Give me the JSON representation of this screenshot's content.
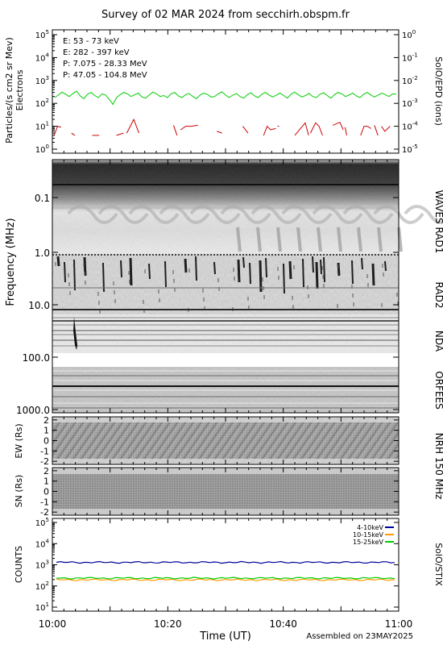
{
  "title": "Survey of 02 MAR 2024 from secchirh.obspm.fr",
  "footer": "Assembled on 23MAY2025",
  "chart_data": [
    {
      "id": "epd",
      "type": "line",
      "ylabel": "Particles/(s cm2 sr Mev)",
      "ylabel2": "Electrons",
      "right_label": "SolO/EPD  (ions)",
      "y_scale": "log",
      "ylim": [
        0.5,
        100000
      ],
      "y_ticks": [
        "10^0",
        "10^1",
        "10^2",
        "10^3",
        "10^4",
        "10^5"
      ],
      "y2_ticks": [
        "10^-5",
        "10^-4",
        "10^-3",
        "10^-2",
        "10^-1",
        "10^0"
      ],
      "legend_position": "top-left",
      "series": [
        {
          "name": "E: 53 - 73 keV",
          "color": "#00cc00",
          "values": [
            180,
            230,
            310,
            250,
            200,
            270,
            340,
            210,
            160,
            250,
            300,
            220,
            180,
            260,
            230,
            150,
            90,
            180,
            240,
            300,
            260,
            200,
            240,
            280,
            190,
            170,
            230,
            310,
            260,
            200,
            220,
            180,
            260,
            300,
            210,
            180,
            240,
            270,
            200,
            160,
            230,
            280,
            250,
            190,
            200,
            260,
            320,
            230,
            180,
            230,
            270,
            200,
            170,
            240,
            290,
            210,
            180,
            250,
            300,
            230,
            190,
            230,
            280,
            220,
            170,
            250,
            310,
            240,
            190,
            220,
            270,
            200,
            180,
            250,
            290,
            220,
            170,
            240,
            300,
            260,
            200,
            230,
            280,
            210,
            180,
            250,
            300,
            230,
            190,
            230,
            280,
            240,
            200,
            260,
            250
          ]
        },
        {
          "name": "E: 282 - 397 keV",
          "color": "#cc0000",
          "segments": [
            [
              [
                0.5,
                4
              ],
              [
                1.5,
                10
              ],
              [
                2.5,
                9
              ]
            ],
            [
              [
                5.5,
                5
              ],
              [
                6.5,
                4
              ]
            ],
            [
              [
                11.5,
                4
              ],
              [
                13.5,
                4
              ]
            ],
            [
              [
                18.5,
                4
              ],
              [
                20.5,
                5
              ]
            ],
            [
              [
                21.5,
                5
              ],
              [
                23.5,
                20
              ],
              [
                25,
                5
              ]
            ],
            [
              [
                35,
                11
              ],
              [
                36,
                4
              ]
            ],
            [
              [
                37,
                7
              ],
              [
                38.5,
                10
              ],
              [
                40,
                10
              ],
              [
                42,
                11
              ]
            ],
            [
              [
                47.5,
                6
              ],
              [
                49,
                5
              ]
            ],
            [
              [
                55,
                10
              ],
              [
                56.5,
                5
              ]
            ],
            [
              [
                61,
                4
              ],
              [
                62,
                10
              ],
              [
                63,
                7
              ],
              [
                64.5,
                8
              ]
            ],
            [
              [
                65,
                10
              ]
            ],
            [
              [
                70,
                4
              ],
              [
                73,
                14
              ],
              [
                74,
                4
              ]
            ],
            [
              [
                74.5,
                5
              ],
              [
                76,
                14
              ],
              [
                77,
                10
              ],
              [
                78,
                4
              ]
            ],
            [
              [
                81,
                11
              ],
              [
                83,
                15
              ],
              [
                84,
                7
              ]
            ],
            [
              [
                84.5,
                9
              ],
              [
                85,
                4
              ]
            ],
            [
              [
                89,
                4
              ],
              [
                90,
                10
              ],
              [
                91,
                10
              ],
              [
                92,
                8
              ]
            ],
            [
              [
                93,
                11
              ],
              [
                94,
                4
              ]
            ],
            [
              [
                95,
                10
              ],
              [
                96,
                6
              ],
              [
                97.5,
                10
              ]
            ]
          ]
        },
        {
          "name": "P: 7.075 - 28.33 MeV",
          "color": "#000000",
          "values": []
        },
        {
          "name": "P: 47.05 - 104.8 MeV",
          "color": "#0000aa",
          "values": []
        }
      ]
    },
    {
      "id": "waves",
      "type": "heatmap",
      "ylabel": "Frequency (MHz)",
      "y_scale": "log",
      "y_ticks": [
        "0.1",
        "1.0",
        "10.0",
        "100.0",
        "1000.0"
      ],
      "bands": [
        "WAVES RAD1",
        "RAD2",
        "NDA",
        "ORFEES"
      ]
    },
    {
      "id": "nrh-ew",
      "type": "heatmap",
      "ylabel": "EW (Rs)",
      "y_ticks": [
        "-2",
        "-1",
        "0",
        "1",
        "2"
      ],
      "right_label": "NRH 150 MHz"
    },
    {
      "id": "nrh-sn",
      "type": "heatmap",
      "ylabel": "SN (Rs)",
      "y_ticks": [
        "-2",
        "-1",
        "0",
        "1",
        "2"
      ]
    },
    {
      "id": "stix",
      "type": "line",
      "ylabel": "COUNTS",
      "right_label": "SolO/STIX",
      "y_scale": "log",
      "ylim": [
        10,
        100000
      ],
      "y_ticks": [
        "10^1",
        "10^2",
        "10^3",
        "10^4",
        "10^5"
      ],
      "legend_position": "top-right",
      "series": [
        {
          "name": "4-10keV",
          "color": "#000099",
          "level": 1300
        },
        {
          "name": "10-15keV",
          "color": "#ff9900",
          "level": 195
        },
        {
          "name": "15-25keV",
          "color": "#00cc00",
          "level": 235
        }
      ]
    }
  ],
  "x_axis": {
    "xlabel": "Time (UT)",
    "tick_labels": [
      "10:00",
      "10:20",
      "10:40",
      "11:00"
    ]
  }
}
